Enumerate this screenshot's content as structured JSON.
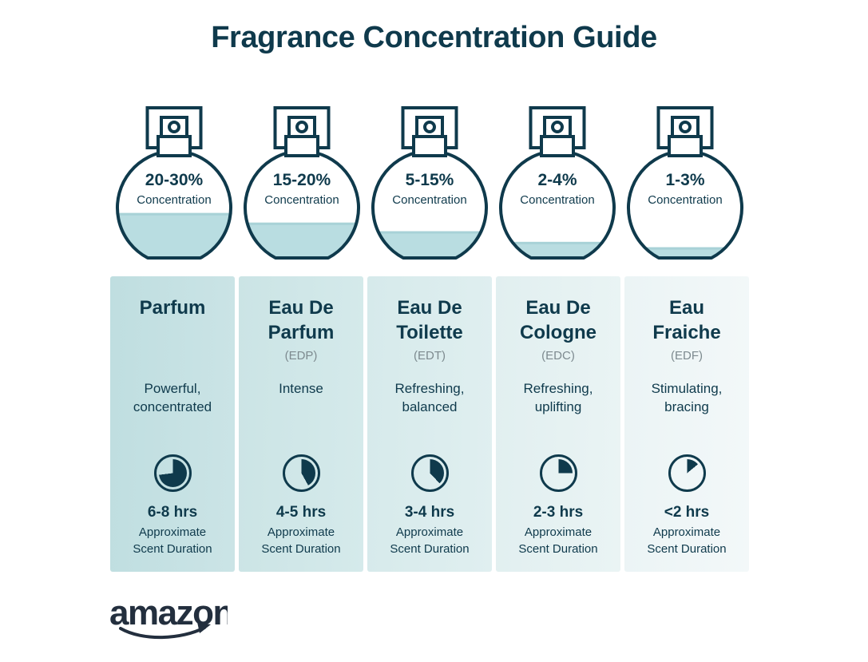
{
  "title": "Fragrance Concentration Guide",
  "brand": {
    "logo_text": "amazon"
  },
  "colors": {
    "ink": "#0f3a4c",
    "liquid": "#b9dde1",
    "liquid_edge": "#a8d2d7",
    "abbr_gray": "#7d8a8f",
    "logo": "#232f3e"
  },
  "bottles": [
    {
      "range": "20-30%",
      "label": "Concentration",
      "fill_percent": 42
    },
    {
      "range": "15-20%",
      "label": "Concentration",
      "fill_percent": 33
    },
    {
      "range": "5-15%",
      "label": "Concentration",
      "fill_percent": 25
    },
    {
      "range": "2-4%",
      "label": "Concentration",
      "fill_percent": 15
    },
    {
      "range": "1-3%",
      "label": "Concentration",
      "fill_percent": 10
    }
  ],
  "columns": [
    {
      "name": "Parfum",
      "abbr": "",
      "description": "Powerful,\nconcentrated",
      "duration": "6-8 hrs",
      "duration_note": "Approximate\nScent Duration",
      "clock_percent": 73,
      "bg_from": "#bfdee0",
      "bg_to": "#cbe4e6"
    },
    {
      "name": "Eau De\nParfum",
      "abbr": "(EDP)",
      "description": "Intense",
      "duration": "4-5 hrs",
      "duration_note": "Approximate\nScent Duration",
      "clock_percent": 42,
      "bg_from": "#cbe4e5",
      "bg_to": "#d5eaeb"
    },
    {
      "name": "Eau De\nToilette",
      "abbr": "(EDT)",
      "description": "Refreshing,\nbalanced",
      "duration": "3-4 hrs",
      "duration_note": "Approximate\nScent Duration",
      "clock_percent": 38,
      "bg_from": "#d6eaeb",
      "bg_to": "#e0eff0"
    },
    {
      "name": "Eau De\nCologne",
      "abbr": "(EDC)",
      "description": "Refreshing,\nuplifting",
      "duration": "2-3 hrs",
      "duration_note": "Approximate\nScent Duration",
      "clock_percent": 25,
      "bg_from": "#e1eff0",
      "bg_to": "#eaf4f4"
    },
    {
      "name": "Eau\nFraiche",
      "abbr": "(EDF)",
      "description": "Stimulating,\nbracing",
      "duration": "<2 hrs",
      "duration_note": "Approximate\nScent Duration",
      "clock_percent": 14,
      "bg_from": "#ebf4f5",
      "bg_to": "#f3f8f9"
    }
  ]
}
